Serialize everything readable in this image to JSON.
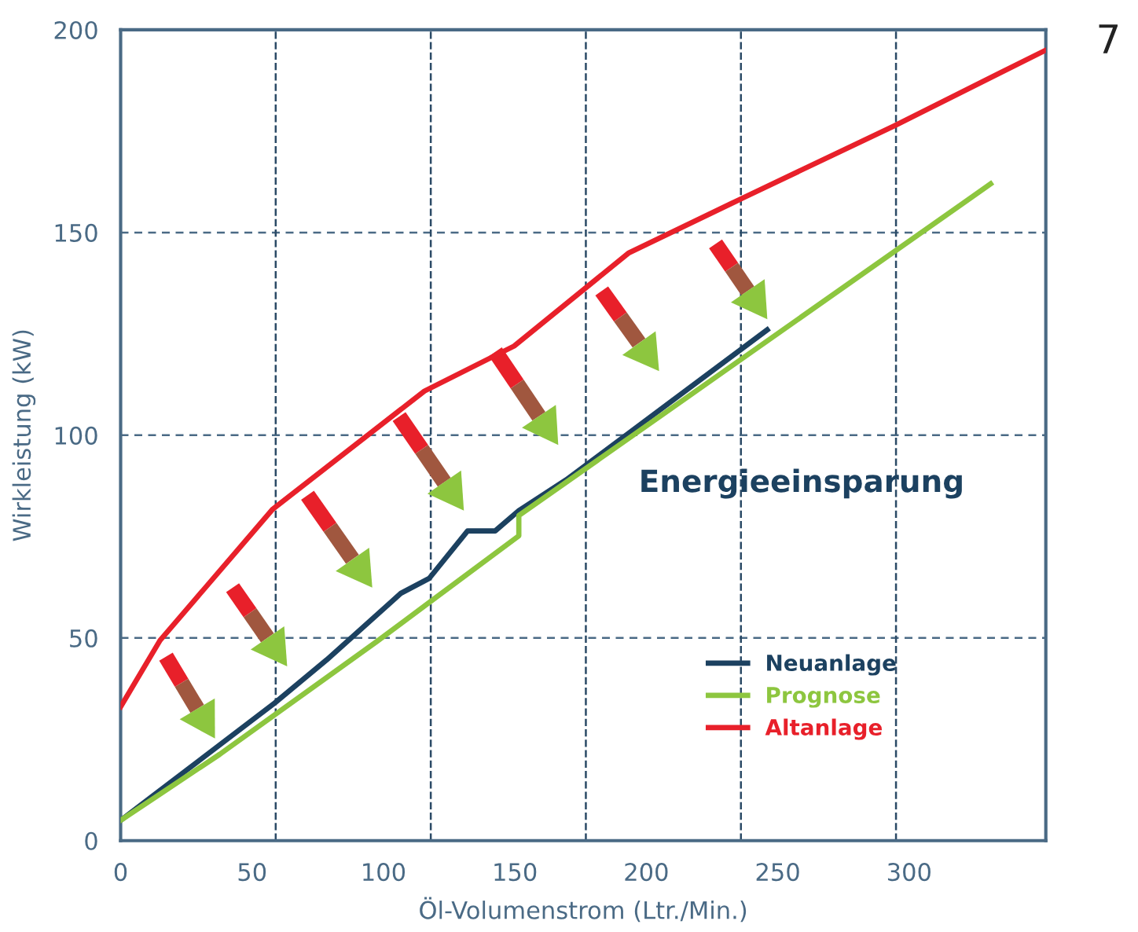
{
  "chart_data": {
    "type": "line",
    "xlabel": "Öl-Volumenstrom (Ltr./Min.)",
    "ylabel": "Wirkleistung (kW)",
    "xlim": [
      0,
      352
    ],
    "ylim": [
      0,
      200
    ],
    "xticks": [
      0,
      50,
      100,
      150,
      200,
      250,
      300
    ],
    "yticks": [
      0,
      50,
      100,
      150,
      200
    ],
    "grid": "y",
    "legend": "bottom right",
    "line_style": "solid",
    "marker": "none",
    "ref_lines": [
      {
        "axis": "x",
        "value": 59,
        "label": null,
        "color": "#2b4a66",
        "line_style": "dashed"
      },
      {
        "axis": "x",
        "value": 118,
        "label": null,
        "color": "#2b4a66",
        "line_style": "dashed"
      },
      {
        "axis": "x",
        "value": 177,
        "label": null,
        "color": "#2b4a66",
        "line_style": "dashed"
      },
      {
        "axis": "x",
        "value": 236,
        "label": null,
        "color": "#2b4a66",
        "line_style": "dashed"
      },
      {
        "axis": "x",
        "value": 295,
        "label": null,
        "color": "#2b4a66",
        "line_style": "dashed"
      }
    ],
    "series": [
      {
        "name": "Neuanlage",
        "color": "#1c4160",
        "x": [
          0,
          58.7,
          78.4,
          106.6,
          117.4,
          132,
          142.5,
          151.5,
          169.5,
          246
        ],
        "values": [
          5,
          34,
          44.6,
          61,
          64.7,
          76.4,
          76.4,
          81.4,
          89,
          126
        ]
      },
      {
        "name": "Prognose",
        "color": "#8dc63f",
        "x": [
          0,
          37.7,
          97.6,
          151.5,
          151.5,
          229,
          331
        ],
        "values": [
          5,
          21.3,
          49.2,
          75.2,
          80.2,
          115.5,
          162
        ]
      },
      {
        "name": "Altanlage",
        "color": "#e8202a",
        "x": [
          0,
          15,
          57.9,
          115.6,
          149.7,
          193.4,
          235,
          294.6,
          352
        ],
        "values": [
          33,
          49.4,
          81.8,
          110.9,
          122,
          145,
          158,
          176.4,
          195
        ]
      }
    ],
    "annotations": [
      "Energieeinsparung",
      "7"
    ]
  }
}
